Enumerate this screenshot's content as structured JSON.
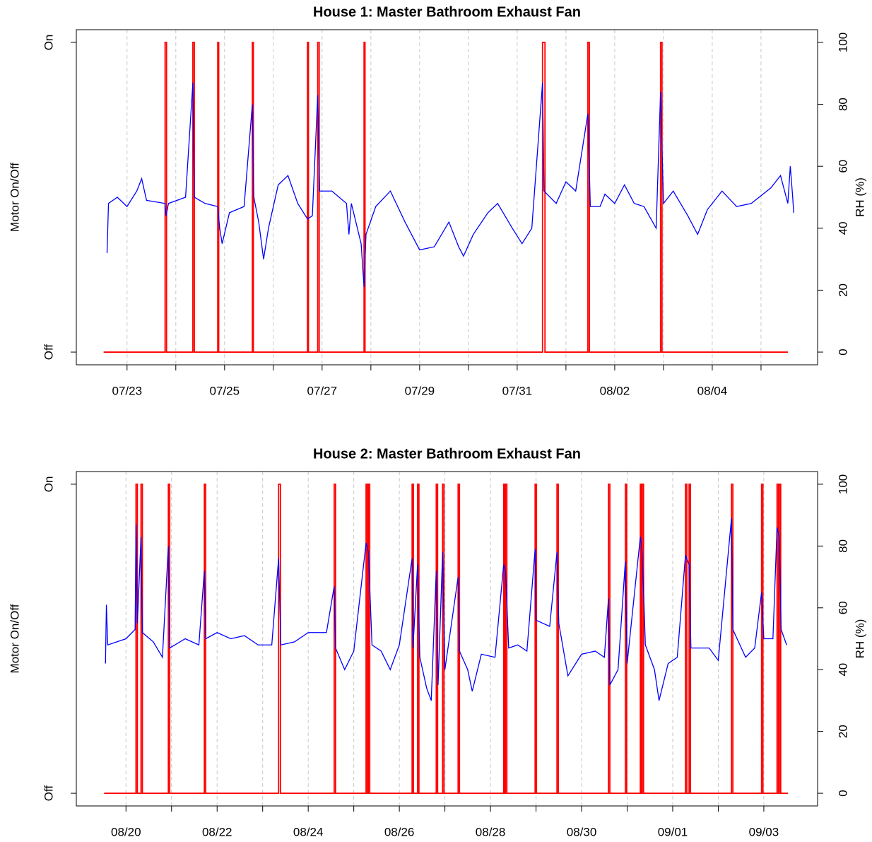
{
  "chart_data": [
    {
      "type": "line",
      "title": "House 1: Master Bathroom Exhaust Fan",
      "ylabel": "Motor On/Off",
      "y2label": "RH (%)",
      "xlim": [
        21.96,
        37.16
      ],
      "xticks": [
        {
          "value": 23,
          "label": "07/23"
        },
        {
          "value": 25,
          "label": "07/25"
        },
        {
          "value": 27,
          "label": "07/27"
        },
        {
          "value": 29,
          "label": "07/29"
        },
        {
          "value": 31,
          "label": "07/31"
        },
        {
          "value": 33,
          "label": "08/02"
        },
        {
          "value": 35,
          "label": "08/04"
        }
      ],
      "minor_xticks": [
        24,
        26,
        28,
        30,
        32,
        34,
        36
      ],
      "grid": true,
      "ylim": [
        -0.041,
        1.041
      ],
      "yticks": [
        {
          "value": 0,
          "label": "Off"
        },
        {
          "value": 1,
          "label": "On"
        }
      ],
      "y2lim": [
        -4.1,
        104.1
      ],
      "y2ticks": [
        0,
        20,
        40,
        60,
        80,
        100
      ],
      "series": [
        {
          "color": "#ff0000",
          "x": [
            22.52,
            23.78,
            23.78,
            23.81,
            23.81,
            24.35,
            24.35,
            24.38,
            24.38,
            24.86,
            24.86,
            24.88,
            24.88,
            25.57,
            25.57,
            25.59,
            25.59,
            26.7,
            26.7,
            26.72,
            26.72,
            26.91,
            26.91,
            26.94,
            26.94,
            27.86,
            27.86,
            27.88,
            27.88,
            31.52,
            31.52,
            31.57,
            31.57,
            32.45,
            32.45,
            32.48,
            32.48,
            33.94,
            33.94,
            33.97,
            33.97,
            36.55
          ],
          "values": [
            0,
            0,
            1,
            1,
            0,
            0,
            1,
            1,
            0,
            0,
            1,
            1,
            0,
            0,
            1,
            1,
            0,
            0,
            1,
            1,
            0,
            0,
            1,
            1,
            0,
            0,
            1,
            1,
            0,
            0,
            1,
            1,
            0,
            0,
            1,
            1,
            0,
            0,
            1,
            1,
            0,
            0
          ]
        },
        {
          "color": "#0000ff",
          "axis": "y2",
          "x": [
            22.59,
            22.62,
            22.8,
            23.0,
            23.2,
            23.3,
            23.4,
            23.78,
            23.8,
            23.85,
            24.2,
            24.35,
            24.38,
            24.6,
            24.86,
            24.9,
            24.95,
            25.1,
            25.4,
            25.57,
            25.6,
            25.7,
            25.8,
            25.9,
            26.1,
            26.3,
            26.5,
            26.7,
            26.8,
            26.91,
            26.95,
            27.2,
            27.5,
            27.55,
            27.6,
            27.8,
            27.86,
            27.9,
            28.1,
            28.4,
            28.7,
            29.0,
            29.3,
            29.6,
            29.8,
            29.9,
            30.1,
            30.4,
            30.6,
            30.9,
            31.1,
            31.3,
            31.52,
            31.55,
            31.8,
            32.0,
            32.2,
            32.45,
            32.5,
            32.7,
            32.8,
            33.0,
            33.2,
            33.4,
            33.6,
            33.85,
            33.94,
            34.0,
            34.2,
            34.5,
            34.7,
            34.9,
            35.2,
            35.5,
            35.8,
            36.2,
            36.4,
            36.55,
            36.6,
            36.65,
            36.67
          ],
          "values": [
            32,
            48,
            50,
            47,
            52,
            56,
            49,
            48,
            44,
            48,
            50,
            87,
            50,
            48,
            47,
            40,
            35,
            45,
            47,
            80,
            50,
            42,
            30,
            40,
            54,
            57,
            48,
            43,
            44,
            83,
            52,
            52,
            48,
            38,
            48,
            35,
            21,
            38,
            47,
            52,
            42,
            33,
            34,
            42,
            34,
            31,
            38,
            45,
            48,
            40,
            35,
            40,
            87,
            52,
            48,
            55,
            52,
            77,
            47,
            47,
            51,
            48,
            54,
            48,
            47,
            40,
            84,
            48,
            52,
            44,
            38,
            46,
            52,
            47,
            48,
            53,
            57,
            48,
            60,
            50,
            45
          ]
        }
      ]
    },
    {
      "type": "line",
      "title": "House 2: Master Bathroom Exhaust Fan",
      "ylabel": "Motor On/Off",
      "y2label": "RH (%)",
      "xlim": [
        18.91,
        35.18
      ],
      "xticks": [
        {
          "value": 20,
          "label": "08/20"
        },
        {
          "value": 22,
          "label": "08/22"
        },
        {
          "value": 24,
          "label": "08/24"
        },
        {
          "value": 26,
          "label": "08/26"
        },
        {
          "value": 28,
          "label": "08/28"
        },
        {
          "value": 30,
          "label": "08/30"
        },
        {
          "value": 32,
          "label": "09/01"
        },
        {
          "value": 34,
          "label": "09/03"
        }
      ],
      "minor_xticks": [
        21,
        23,
        25,
        27,
        29,
        31,
        33
      ],
      "grid": true,
      "ylim": [
        -0.041,
        1.041
      ],
      "yticks": [
        {
          "value": 0,
          "label": "Off"
        },
        {
          "value": 1,
          "label": "On"
        }
      ],
      "y2lim": [
        -4.1,
        104.1
      ],
      "y2ticks": [
        0,
        20,
        40,
        60,
        80,
        100
      ],
      "series": [
        {
          "color": "#ff0000",
          "x": [
            19.52,
            20.22,
            20.22,
            20.25,
            20.25,
            20.33,
            20.33,
            20.36,
            20.36,
            20.93,
            20.93,
            20.96,
            20.96,
            21.72,
            21.72,
            21.75,
            21.75,
            23.35,
            23.35,
            23.39,
            23.39,
            24.57,
            24.57,
            24.6,
            24.6,
            25.27,
            25.27,
            25.3,
            25.3,
            25.32,
            25.32,
            25.35,
            25.35,
            26.28,
            26.28,
            26.31,
            26.31,
            26.4,
            26.4,
            26.43,
            26.43,
            26.81,
            26.81,
            26.84,
            26.84,
            26.95,
            26.95,
            26.98,
            26.98,
            27.29,
            27.29,
            27.32,
            27.32,
            28.29,
            28.29,
            28.31,
            28.31,
            28.33,
            28.33,
            28.36,
            28.36,
            28.98,
            28.98,
            29.01,
            29.01,
            29.46,
            29.46,
            29.49,
            29.49,
            30.59,
            30.59,
            30.62,
            30.62,
            30.96,
            30.96,
            30.99,
            30.99,
            31.29,
            31.29,
            31.31,
            31.31,
            31.33,
            31.33,
            31.36,
            31.36,
            32.28,
            32.28,
            32.31,
            32.31,
            32.36,
            32.36,
            32.39,
            32.39,
            33.29,
            33.29,
            33.32,
            33.32,
            33.95,
            33.95,
            33.98,
            33.98,
            34.29,
            34.29,
            34.32,
            34.32,
            34.34,
            34.34,
            34.37,
            34.37,
            34.53
          ],
          "values": [
            0,
            0,
            1,
            1,
            0,
            0,
            1,
            1,
            0,
            0,
            1,
            1,
            0,
            0,
            1,
            1,
            0,
            0,
            1,
            1,
            0,
            0,
            1,
            1,
            0,
            0,
            1,
            1,
            0,
            0,
            1,
            1,
            0,
            0,
            1,
            1,
            0,
            0,
            1,
            1,
            0,
            0,
            1,
            1,
            0,
            0,
            1,
            1,
            0,
            0,
            1,
            1,
            0,
            0,
            1,
            1,
            0,
            0,
            1,
            1,
            0,
            0,
            1,
            1,
            0,
            0,
            1,
            1,
            0,
            0,
            1,
            1,
            0,
            0,
            1,
            1,
            0,
            0,
            1,
            1,
            0,
            0,
            1,
            1,
            0,
            0,
            1,
            1,
            0,
            0,
            1,
            1,
            0,
            0,
            1,
            1,
            0,
            0,
            1,
            1,
            0,
            0,
            1,
            1,
            0,
            0,
            1,
            1,
            0,
            0
          ]
        },
        {
          "color": "#0000ff",
          "axis": "y2",
          "x": [
            19.55,
            19.57,
            19.6,
            19.8,
            20.0,
            20.2,
            20.22,
            20.25,
            20.33,
            20.36,
            20.6,
            20.8,
            20.93,
            20.96,
            21.3,
            21.6,
            21.72,
            21.75,
            22.0,
            22.3,
            22.6,
            22.9,
            23.2,
            23.35,
            23.4,
            23.7,
            24.0,
            24.4,
            24.57,
            24.6,
            24.8,
            25.0,
            25.27,
            25.32,
            25.4,
            25.6,
            25.8,
            26.0,
            26.28,
            26.3,
            26.4,
            26.45,
            26.6,
            26.7,
            26.81,
            26.85,
            26.95,
            27.0,
            27.29,
            27.32,
            27.5,
            27.6,
            27.8,
            28.1,
            28.29,
            28.33,
            28.4,
            28.6,
            28.8,
            28.98,
            29.0,
            29.3,
            29.46,
            29.5,
            29.7,
            30.0,
            30.3,
            30.5,
            30.59,
            30.62,
            30.8,
            30.96,
            31.0,
            31.29,
            31.33,
            31.4,
            31.6,
            31.7,
            31.9,
            32.1,
            32.28,
            32.36,
            32.4,
            32.8,
            33.0,
            33.29,
            33.32,
            33.6,
            33.8,
            33.95,
            34.0,
            34.2,
            34.29,
            34.34,
            34.38,
            34.5
          ],
          "values": [
            42,
            61,
            48,
            49,
            50,
            53,
            87,
            55,
            83,
            52,
            49,
            44,
            80,
            47,
            50,
            48,
            72,
            50,
            52,
            50,
            51,
            48,
            48,
            76,
            48,
            49,
            52,
            52,
            67,
            47,
            40,
            46,
            81,
            78,
            48,
            46,
            40,
            48,
            76,
            47,
            74,
            44,
            34,
            30,
            72,
            35,
            78,
            40,
            70,
            46,
            40,
            33,
            45,
            44,
            74,
            72,
            47,
            48,
            46,
            79,
            56,
            54,
            78,
            55,
            38,
            45,
            46,
            44,
            63,
            35,
            40,
            75,
            42,
            83,
            78,
            48,
            40,
            30,
            42,
            44,
            77,
            74,
            47,
            47,
            43,
            89,
            53,
            44,
            47,
            65,
            50,
            50,
            86,
            83,
            53,
            48
          ]
        }
      ]
    }
  ]
}
